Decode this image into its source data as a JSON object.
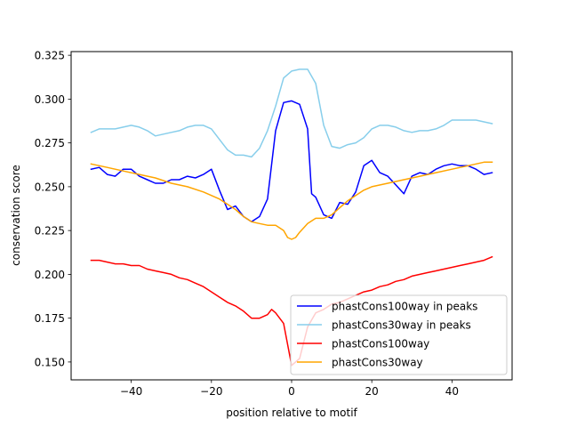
{
  "chart_data": {
    "type": "line",
    "title": "",
    "xlabel": "position relative to motif",
    "ylabel": "conservation score",
    "xlim": [
      -55,
      55
    ],
    "ylim": [
      0.1398,
      0.3271
    ],
    "xticks": [
      -40,
      -20,
      0,
      20,
      40
    ],
    "xtick_labels": [
      "−40",
      "−20",
      "0",
      "20",
      "40"
    ],
    "yticks": [
      0.15,
      0.175,
      0.2,
      0.225,
      0.25,
      0.275,
      0.3,
      0.325
    ],
    "ytick_labels": [
      "0.150",
      "0.175",
      "0.200",
      "0.225",
      "0.250",
      "0.275",
      "0.300",
      "0.325"
    ],
    "grid": false,
    "legend_position": "lower-right",
    "series": [
      {
        "name": "phastCons100way in peaks",
        "color": "#0000ff",
        "x": [
          -50,
          -48,
          -46,
          -44,
          -42,
          -40,
          -38,
          -36,
          -34,
          -32,
          -30,
          -28,
          -26,
          -24,
          -22,
          -20,
          -18,
          -16,
          -14,
          -12,
          -10,
          -8,
          -6,
          -4,
          -3,
          -2,
          0,
          2,
          4,
          5,
          6,
          8,
          10,
          12,
          14,
          16,
          18,
          20,
          22,
          24,
          26,
          28,
          30,
          32,
          34,
          36,
          38,
          40,
          42,
          44,
          46,
          48,
          50
        ],
        "y": [
          0.26,
          0.261,
          0.257,
          0.256,
          0.26,
          0.26,
          0.256,
          0.254,
          0.252,
          0.252,
          0.254,
          0.254,
          0.256,
          0.255,
          0.257,
          0.26,
          0.248,
          0.237,
          0.239,
          0.233,
          0.23,
          0.233,
          0.243,
          0.282,
          0.29,
          0.298,
          0.299,
          0.297,
          0.283,
          0.246,
          0.244,
          0.234,
          0.232,
          0.241,
          0.24,
          0.247,
          0.262,
          0.265,
          0.258,
          0.256,
          0.251,
          0.246,
          0.256,
          0.258,
          0.257,
          0.26,
          0.262,
          0.263,
          0.262,
          0.262,
          0.26,
          0.257,
          0.258
        ]
      },
      {
        "name": "phastCons30way in peaks",
        "color": "#87ceeb",
        "x": [
          -50,
          -48,
          -46,
          -44,
          -42,
          -40,
          -38,
          -36,
          -34,
          -32,
          -30,
          -28,
          -26,
          -24,
          -22,
          -20,
          -18,
          -16,
          -14,
          -12,
          -10,
          -8,
          -6,
          -4,
          -2,
          0,
          2,
          4,
          6,
          8,
          10,
          12,
          14,
          16,
          18,
          20,
          22,
          24,
          26,
          28,
          30,
          32,
          34,
          36,
          38,
          40,
          42,
          44,
          46,
          48,
          50
        ],
        "y": [
          0.281,
          0.283,
          0.283,
          0.283,
          0.284,
          0.285,
          0.284,
          0.282,
          0.279,
          0.28,
          0.281,
          0.282,
          0.284,
          0.285,
          0.285,
          0.283,
          0.277,
          0.271,
          0.268,
          0.268,
          0.267,
          0.272,
          0.282,
          0.296,
          0.312,
          0.316,
          0.317,
          0.317,
          0.309,
          0.285,
          0.273,
          0.272,
          0.274,
          0.275,
          0.278,
          0.283,
          0.285,
          0.285,
          0.284,
          0.282,
          0.281,
          0.282,
          0.282,
          0.283,
          0.285,
          0.288,
          0.288,
          0.288,
          0.288,
          0.287,
          0.286
        ]
      },
      {
        "name": "phastCons100way",
        "color": "#ff0000",
        "x": [
          -50,
          -48,
          -46,
          -44,
          -42,
          -40,
          -38,
          -36,
          -34,
          -32,
          -30,
          -28,
          -26,
          -24,
          -22,
          -20,
          -18,
          -16,
          -14,
          -12,
          -10,
          -8,
          -6,
          -5,
          -4,
          -2,
          0,
          2,
          4,
          6,
          8,
          10,
          12,
          14,
          16,
          18,
          20,
          22,
          24,
          26,
          28,
          30,
          32,
          34,
          36,
          38,
          40,
          42,
          44,
          46,
          48,
          50
        ],
        "y": [
          0.208,
          0.208,
          0.207,
          0.206,
          0.206,
          0.205,
          0.205,
          0.203,
          0.202,
          0.201,
          0.2,
          0.198,
          0.197,
          0.195,
          0.193,
          0.19,
          0.187,
          0.184,
          0.182,
          0.179,
          0.175,
          0.175,
          0.177,
          0.18,
          0.178,
          0.172,
          0.148,
          0.152,
          0.17,
          0.178,
          0.18,
          0.183,
          0.184,
          0.186,
          0.188,
          0.19,
          0.191,
          0.193,
          0.194,
          0.196,
          0.197,
          0.199,
          0.2,
          0.201,
          0.202,
          0.203,
          0.204,
          0.205,
          0.206,
          0.207,
          0.208,
          0.21
        ]
      },
      {
        "name": "phastCons30way",
        "color": "#ffa500",
        "x": [
          -50,
          -46,
          -42,
          -38,
          -34,
          -30,
          -26,
          -22,
          -18,
          -14,
          -12,
          -10,
          -8,
          -6,
          -4,
          -2,
          -1,
          0,
          1,
          2,
          4,
          6,
          8,
          10,
          12,
          14,
          16,
          18,
          20,
          24,
          28,
          32,
          36,
          40,
          44,
          48,
          50
        ],
        "y": [
          0.263,
          0.261,
          0.259,
          0.257,
          0.255,
          0.252,
          0.25,
          0.247,
          0.243,
          0.237,
          0.233,
          0.23,
          0.229,
          0.228,
          0.228,
          0.225,
          0.221,
          0.22,
          0.221,
          0.224,
          0.229,
          0.232,
          0.232,
          0.234,
          0.238,
          0.242,
          0.245,
          0.248,
          0.25,
          0.252,
          0.254,
          0.256,
          0.258,
          0.26,
          0.262,
          0.264,
          0.264
        ]
      }
    ]
  }
}
